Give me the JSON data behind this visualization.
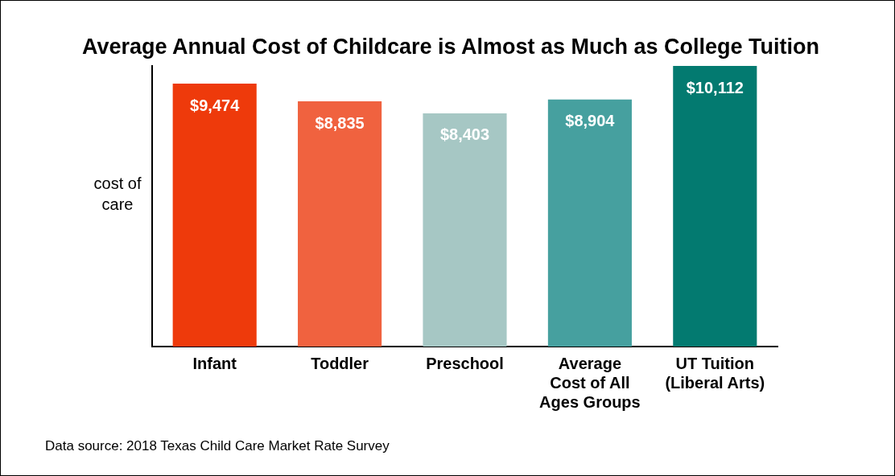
{
  "chart_data": {
    "type": "bar",
    "title": "Average Annual Cost of Childcare is Almost as Much as College Tuition",
    "ylabel": "cost of care",
    "categories": [
      "Infant",
      "Toddler",
      "Preschool",
      "Average Cost of All Ages Groups",
      "UT Tuition (Liberal Arts)"
    ],
    "values": [
      9474,
      8835,
      8403,
      8904,
      10112
    ],
    "colors": [
      "#ee3a0b",
      "#f0623f",
      "#a6c7c4",
      "#46a09f",
      "#037a70"
    ],
    "value_labels": [
      "$9,474",
      "$8,835",
      "$8,403",
      "$8,904",
      "$10,112"
    ],
    "ylim": [
      0,
      10112
    ],
    "tick_labels": "x",
    "grid": false,
    "legend": false,
    "annotations": [
      "Data source: 2018 Texas Child Care Market Rate Survey"
    ]
  }
}
